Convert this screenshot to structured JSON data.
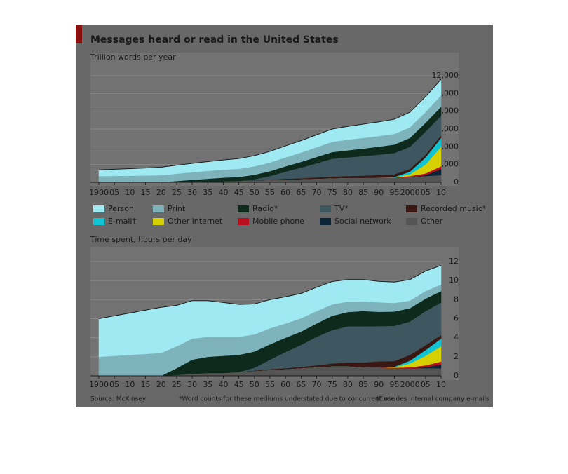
{
  "title": "Messages heard or read in the United States",
  "source": "Source: McKinsey",
  "notes": [
    "*Word counts for these mediums understated due to concurrent use",
    "†Excludes internal company e-mails"
  ],
  "chart_data": [
    {
      "type": "area",
      "subtitle": "Trillion words per year",
      "x": [
        1900,
        1905,
        1910,
        1915,
        1920,
        1925,
        1930,
        1935,
        1940,
        1945,
        1950,
        1955,
        1960,
        1965,
        1970,
        1975,
        1980,
        1985,
        1990,
        1995,
        2000,
        2005,
        2010
      ],
      "xlim": [
        1900,
        2010
      ],
      "xticks": [
        {
          "value": 1900,
          "label": "1900"
        },
        {
          "value": 1905,
          "label": "05"
        },
        {
          "value": 1910,
          "label": "10"
        },
        {
          "value": 1915,
          "label": "15"
        },
        {
          "value": 1920,
          "label": "20"
        },
        {
          "value": 1925,
          "label": "25"
        },
        {
          "value": 1930,
          "label": "30"
        },
        {
          "value": 1935,
          "label": "35"
        },
        {
          "value": 1940,
          "label": "40"
        },
        {
          "value": 1945,
          "label": "45"
        },
        {
          "value": 1950,
          "label": "50"
        },
        {
          "value": 1955,
          "label": "55"
        },
        {
          "value": 1960,
          "label": "60"
        },
        {
          "value": 1965,
          "label": "65"
        },
        {
          "value": 1970,
          "label": "70"
        },
        {
          "value": 1975,
          "label": "75"
        },
        {
          "value": 1980,
          "label": "80"
        },
        {
          "value": 1985,
          "label": "85"
        },
        {
          "value": 1990,
          "label": "90"
        },
        {
          "value": 1995,
          "label": "95"
        },
        {
          "value": 2000,
          "label": "2000"
        },
        {
          "value": 2005,
          "label": "05"
        },
        {
          "value": 2010,
          "label": "10"
        }
      ],
      "ylim": [
        0,
        12000
      ],
      "yticks": [
        0,
        {
          "value": 2000,
          "label": "2,000"
        },
        {
          "value": 4000,
          "label": "4,000"
        },
        {
          "value": 6000,
          "label": "6,000"
        },
        {
          "value": 8000,
          "label": "8,000"
        },
        {
          "value": 10000,
          "label": "10,000"
        },
        {
          "value": 12000,
          "label": "12,000"
        }
      ],
      "grid": true,
      "series": [
        {
          "name": "Person",
          "color": "#9fe9f2",
          "values": [
            700,
            750,
            800,
            850,
            900,
            950,
            1000,
            1050,
            1100,
            1150,
            1200,
            1250,
            1300,
            1350,
            1400,
            1450,
            1500,
            1550,
            1600,
            1650,
            1700,
            1750,
            1800
          ]
        },
        {
          "name": "Print",
          "color": "#7fb3bc",
          "values": [
            700,
            720,
            740,
            760,
            800,
            820,
            850,
            880,
            900,
            920,
            950,
            980,
            1000,
            1050,
            1100,
            1150,
            1200,
            1200,
            1200,
            1200,
            1200,
            1200,
            1300
          ]
        },
        {
          "name": "Radio*",
          "color": "#0d2a1c",
          "values": [
            0,
            0,
            0,
            0,
            0,
            100,
            200,
            300,
            400,
            450,
            500,
            550,
            600,
            650,
            700,
            750,
            800,
            850,
            900,
            950,
            1000,
            1000,
            1000
          ]
        },
        {
          "name": "TV*",
          "color": "#3d5660",
          "values": [
            0,
            0,
            0,
            0,
            0,
            0,
            0,
            0,
            0,
            0,
            100,
            400,
            800,
            1200,
            1600,
            2000,
            2100,
            2200,
            2300,
            2400,
            2500,
            2600,
            2200
          ]
        },
        {
          "name": "Recorded music*",
          "color": "#3a1712",
          "values": [
            0,
            0,
            0,
            0,
            0,
            0,
            0,
            0,
            0,
            0,
            50,
            50,
            100,
            100,
            150,
            200,
            200,
            250,
            300,
            300,
            300,
            300,
            300
          ]
        },
        {
          "name": "E-mail†",
          "color": "#10c4d4",
          "values": [
            0,
            0,
            0,
            0,
            0,
            0,
            0,
            0,
            0,
            0,
            0,
            0,
            0,
            0,
            0,
            0,
            0,
            0,
            0,
            50,
            300,
            800,
            1000
          ]
        },
        {
          "name": "Other internet",
          "color": "#d6d000",
          "values": [
            0,
            0,
            0,
            0,
            0,
            0,
            0,
            0,
            0,
            0,
            0,
            0,
            0,
            0,
            0,
            0,
            0,
            0,
            0,
            20,
            200,
            1000,
            2200
          ]
        },
        {
          "name": "Mobile phone",
          "color": "#b8101c",
          "values": [
            0,
            0,
            0,
            0,
            0,
            0,
            0,
            0,
            0,
            0,
            0,
            0,
            0,
            0,
            0,
            0,
            0,
            0,
            10,
            30,
            100,
            200,
            300
          ]
        },
        {
          "name": "Social network",
          "color": "#0a2636",
          "values": [
            0,
            0,
            0,
            0,
            0,
            0,
            0,
            0,
            0,
            0,
            0,
            0,
            0,
            0,
            0,
            0,
            0,
            0,
            0,
            0,
            0,
            100,
            700
          ]
        },
        {
          "name": "Other",
          "color": "#545454",
          "values": [
            0,
            0,
            0,
            0,
            0,
            50,
            80,
            100,
            120,
            150,
            200,
            250,
            300,
            350,
            400,
            450,
            500,
            500,
            500,
            500,
            600,
            700,
            800
          ]
        }
      ]
    },
    {
      "type": "area",
      "subtitle": "Time spent, hours per day",
      "x": [
        1900,
        1905,
        1910,
        1915,
        1920,
        1925,
        1930,
        1935,
        1940,
        1945,
        1950,
        1955,
        1960,
        1965,
        1970,
        1975,
        1980,
        1985,
        1990,
        1995,
        2000,
        2005,
        2010
      ],
      "xlim": [
        1900,
        2010
      ],
      "xticks": [
        {
          "value": 1900,
          "label": "1900"
        },
        {
          "value": 1905,
          "label": "05"
        },
        {
          "value": 1910,
          "label": "10"
        },
        {
          "value": 1915,
          "label": "15"
        },
        {
          "value": 1920,
          "label": "20"
        },
        {
          "value": 1925,
          "label": "25"
        },
        {
          "value": 1930,
          "label": "30"
        },
        {
          "value": 1935,
          "label": "35"
        },
        {
          "value": 1940,
          "label": "40"
        },
        {
          "value": 1945,
          "label": "45"
        },
        {
          "value": 1950,
          "label": "50"
        },
        {
          "value": 1955,
          "label": "55"
        },
        {
          "value": 1960,
          "label": "60"
        },
        {
          "value": 1965,
          "label": "65"
        },
        {
          "value": 1970,
          "label": "70"
        },
        {
          "value": 1975,
          "label": "75"
        },
        {
          "value": 1980,
          "label": "80"
        },
        {
          "value": 1985,
          "label": "85"
        },
        {
          "value": 1990,
          "label": "90"
        },
        {
          "value": 1995,
          "label": "95"
        },
        {
          "value": 2000,
          "label": "2000"
        },
        {
          "value": 2005,
          "label": "05"
        },
        {
          "value": 2010,
          "label": "10"
        }
      ],
      "ylim": [
        0,
        12
      ],
      "yticks": [
        0,
        2,
        4,
        6,
        8,
        10,
        12
      ],
      "grid": true,
      "series": [
        {
          "name": "Person",
          "color": "#9fe9f2",
          "values": [
            4,
            4.2,
            4.4,
            4.6,
            4.8,
            4.3,
            4,
            3.8,
            3.6,
            3.4,
            3.2,
            3,
            2.8,
            2.6,
            2.5,
            2.4,
            2.3,
            2.3,
            2.2,
            2.2,
            2.2,
            2.1,
            2
          ]
        },
        {
          "name": "Print",
          "color": "#7fb3bc",
          "values": [
            2,
            2.1,
            2.2,
            2.3,
            2.4,
            2.3,
            2.2,
            2.1,
            2,
            1.9,
            1.8,
            1.7,
            1.5,
            1.4,
            1.3,
            1.2,
            1.1,
            1,
            1,
            0.9,
            0.8,
            0.8,
            0.7
          ]
        },
        {
          "name": "Radio*",
          "color": "#0d2a1c",
          "values": [
            0,
            0,
            0,
            0,
            0,
            0.7,
            1.5,
            1.7,
            1.8,
            1.8,
            1.7,
            1.6,
            1.5,
            1.4,
            1.4,
            1.5,
            1.5,
            1.6,
            1.5,
            1.5,
            1.4,
            1.3,
            1.2
          ]
        },
        {
          "name": "TV*",
          "color": "#3d5660",
          "values": [
            0,
            0,
            0,
            0,
            0,
            0,
            0,
            0,
            0,
            0,
            0.3,
            1,
            1.7,
            2.3,
            3,
            3.5,
            3.8,
            3.8,
            3.7,
            3.7,
            3.5,
            3.6,
            3.4
          ]
        },
        {
          "name": "Recorded music*",
          "color": "#3a1712",
          "values": [
            0,
            0,
            0,
            0,
            0,
            0,
            0,
            0,
            0,
            0,
            0.05,
            0.1,
            0.1,
            0.15,
            0.2,
            0.3,
            0.4,
            0.5,
            0.6,
            0.6,
            0.6,
            0.5,
            0.4
          ]
        },
        {
          "name": "E-mail†",
          "color": "#10c4d4",
          "values": [
            0,
            0,
            0,
            0,
            0,
            0,
            0,
            0,
            0,
            0,
            0,
            0,
            0,
            0,
            0,
            0,
            0,
            0,
            0,
            0.05,
            0.3,
            0.6,
            0.8
          ]
        },
        {
          "name": "Other internet",
          "color": "#d6d000",
          "values": [
            0,
            0,
            0,
            0,
            0,
            0,
            0,
            0,
            0,
            0,
            0,
            0,
            0,
            0,
            0,
            0,
            0,
            0,
            0,
            0.05,
            0.4,
            1,
            1.6
          ]
        },
        {
          "name": "Mobile phone",
          "color": "#b8101c",
          "values": [
            0,
            0,
            0,
            0,
            0,
            0,
            0,
            0,
            0,
            0,
            0,
            0,
            0,
            0,
            0,
            0,
            0,
            0,
            0.02,
            0.05,
            0.1,
            0.2,
            0.3
          ]
        },
        {
          "name": "Social network",
          "color": "#0a2636",
          "values": [
            0,
            0,
            0,
            0,
            0,
            0,
            0,
            0,
            0,
            0,
            0,
            0,
            0,
            0,
            0,
            0,
            0,
            0,
            0,
            0,
            0,
            0.1,
            0.4
          ]
        },
        {
          "name": "Other",
          "color": "#545454",
          "values": [
            0,
            0,
            0,
            0,
            0,
            0.1,
            0.2,
            0.3,
            0.3,
            0.4,
            0.5,
            0.6,
            0.7,
            0.8,
            0.9,
            1,
            1,
            0.9,
            0.9,
            0.8,
            0.8,
            0.8,
            0.8
          ]
        }
      ]
    }
  ]
}
